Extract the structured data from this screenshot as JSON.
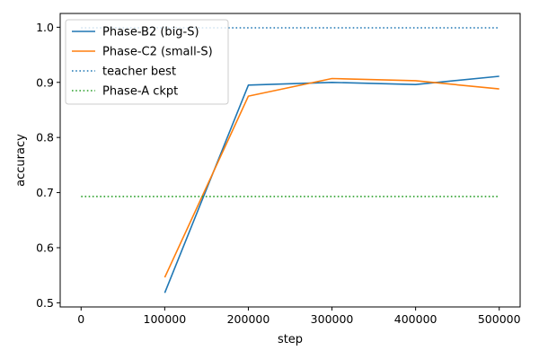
{
  "chart_data": {
    "type": "line",
    "title": "",
    "xlabel": "step",
    "ylabel": "accuracy",
    "xlim": [
      -25000,
      525000
    ],
    "ylim": [
      0.4925,
      1.025
    ],
    "x_ticks": [
      0,
      100000,
      200000,
      300000,
      400000,
      500000
    ],
    "x_tick_labels": [
      "0",
      "100000",
      "200000",
      "300000",
      "400000",
      "500000"
    ],
    "y_ticks": [
      0.5,
      0.6,
      0.7,
      0.8,
      0.9,
      1.0
    ],
    "y_tick_labels": [
      "0.5",
      "0.6",
      "0.7",
      "0.8",
      "0.9",
      "1.0"
    ],
    "grid": false,
    "legend_position": "top-left",
    "series": [
      {
        "name": "Phase-B2 (big-S)",
        "style": "solid",
        "color": "#1f77b4",
        "x": [
          100000,
          200000,
          300000,
          400000,
          500000
        ],
        "values": [
          0.518,
          0.895,
          0.9,
          0.896,
          0.911
        ]
      },
      {
        "name": "Phase-C2 (small-S)",
        "style": "solid",
        "color": "#ff7f0e",
        "x": [
          100000,
          200000,
          300000,
          400000,
          500000
        ],
        "values": [
          0.546,
          0.875,
          0.907,
          0.903,
          0.888
        ]
      },
      {
        "name": "teacher best",
        "style": "dotted",
        "color": "#1f77b4",
        "x": [
          0,
          500000
        ],
        "values": [
          0.999,
          0.999
        ]
      },
      {
        "name": "Phase-A ckpt",
        "style": "dotted",
        "color": "#2ca02c",
        "x": [
          0,
          500000
        ],
        "values": [
          0.693,
          0.693
        ]
      }
    ]
  }
}
